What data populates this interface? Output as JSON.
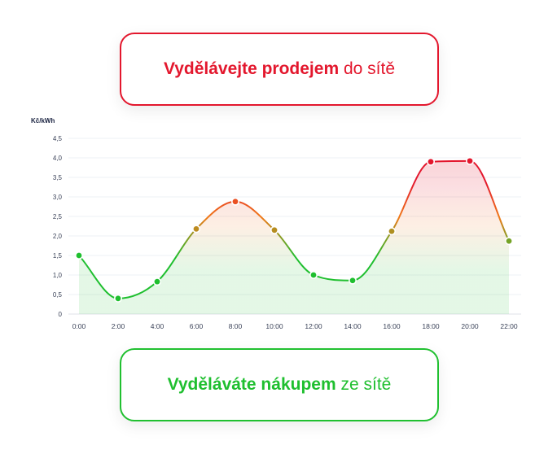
{
  "top_box": {
    "bold": "Vydělávejte prodejem",
    "rest": "do sítě",
    "color": "#e3172d"
  },
  "bottom_box": {
    "bold": "Vyděláváte nákupem",
    "rest": "ze sítě",
    "color": "#1fbf2f"
  },
  "chart_data": {
    "type": "line",
    "ylabel": "Kč/kWh",
    "xlabel": "",
    "ylim": [
      0,
      4.5
    ],
    "yticks": [
      "0",
      "0,5",
      "1,0",
      "1,5",
      "2,0",
      "2,5",
      "3,0",
      "3,5",
      "4,0",
      "4,5"
    ],
    "x": [
      "0:00",
      "2:00",
      "4:00",
      "6:00",
      "8:00",
      "10:00",
      "12:00",
      "14:00",
      "16:00",
      "18:00",
      "20:00",
      "22:00"
    ],
    "values": [
      1.5,
      0.4,
      0.83,
      2.18,
      2.88,
      2.15,
      1.0,
      0.86,
      2.12,
      3.9,
      3.92,
      1.87
    ],
    "grid": true,
    "colors": {
      "low": "#1fbf2f",
      "mid": "#f07a1a",
      "high": "#e3172d"
    }
  }
}
